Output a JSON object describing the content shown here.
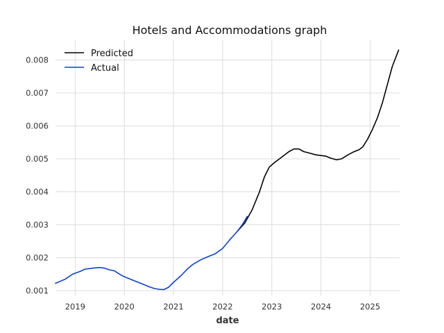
{
  "chart_data": {
    "type": "line",
    "title": "Hotels and Accommodations graph",
    "xlabel": "date",
    "ylabel": "",
    "xlim": [
      2018.6,
      2025.6
    ],
    "ylim": [
      0.00085,
      0.0086
    ],
    "x_ticks": [
      2019,
      2020,
      2021,
      2022,
      2023,
      2024,
      2025
    ],
    "x_tick_labels": [
      "2019",
      "2020",
      "2021",
      "2022",
      "2023",
      "2024",
      "2025"
    ],
    "y_ticks": [
      0.001,
      0.002,
      0.003,
      0.004,
      0.005,
      0.006,
      0.007,
      0.008
    ],
    "y_tick_labels": [
      "0.001",
      "0.002",
      "0.003",
      "0.004",
      "0.005",
      "0.006",
      "0.007",
      "0.008"
    ],
    "grid": true,
    "legend": {
      "position": "top-left"
    },
    "series": [
      {
        "name": "Predicted",
        "color": "#000000",
        "points": [
          [
            2022.3,
            0.0028
          ],
          [
            2022.45,
            0.00305
          ],
          [
            2022.6,
            0.00345
          ],
          [
            2022.75,
            0.004
          ],
          [
            2022.85,
            0.00445
          ],
          [
            2022.95,
            0.00475
          ],
          [
            2023.05,
            0.00488
          ],
          [
            2023.2,
            0.00505
          ],
          [
            2023.35,
            0.00522
          ],
          [
            2023.45,
            0.0053
          ],
          [
            2023.55,
            0.0053
          ],
          [
            2023.65,
            0.00522
          ],
          [
            2023.75,
            0.00518
          ],
          [
            2023.9,
            0.00512
          ],
          [
            2024.0,
            0.0051
          ],
          [
            2024.1,
            0.00508
          ],
          [
            2024.2,
            0.00502
          ],
          [
            2024.32,
            0.00497
          ],
          [
            2024.42,
            0.005
          ],
          [
            2024.55,
            0.00512
          ],
          [
            2024.65,
            0.0052
          ],
          [
            2024.78,
            0.00528
          ],
          [
            2024.85,
            0.00536
          ],
          [
            2024.95,
            0.0056
          ],
          [
            2025.05,
            0.0059
          ],
          [
            2025.15,
            0.00625
          ],
          [
            2025.25,
            0.0067
          ],
          [
            2025.35,
            0.00725
          ],
          [
            2025.45,
            0.0078
          ],
          [
            2025.58,
            0.0083
          ]
        ]
      },
      {
        "name": "Actual",
        "color": "#0a3fd9",
        "points": [
          [
            2018.6,
            0.00122
          ],
          [
            2018.8,
            0.00135
          ],
          [
            2018.95,
            0.0015
          ],
          [
            2019.1,
            0.00158
          ],
          [
            2019.2,
            0.00165
          ],
          [
            2019.35,
            0.00168
          ],
          [
            2019.5,
            0.0017
          ],
          [
            2019.6,
            0.00168
          ],
          [
            2019.7,
            0.00163
          ],
          [
            2019.8,
            0.0016
          ],
          [
            2019.9,
            0.0015
          ],
          [
            2020.0,
            0.00142
          ],
          [
            2020.2,
            0.0013
          ],
          [
            2020.4,
            0.00118
          ],
          [
            2020.5,
            0.00112
          ],
          [
            2020.6,
            0.00107
          ],
          [
            2020.7,
            0.00104
          ],
          [
            2020.8,
            0.00103
          ],
          [
            2020.9,
            0.0011
          ],
          [
            2021.0,
            0.00125
          ],
          [
            2021.15,
            0.00145
          ],
          [
            2021.3,
            0.00168
          ],
          [
            2021.4,
            0.0018
          ],
          [
            2021.55,
            0.00193
          ],
          [
            2021.7,
            0.00203
          ],
          [
            2021.85,
            0.00212
          ],
          [
            2022.0,
            0.00228
          ],
          [
            2022.15,
            0.00255
          ],
          [
            2022.3,
            0.0028
          ],
          [
            2022.4,
            0.003
          ],
          [
            2022.5,
            0.00325
          ]
        ]
      }
    ]
  }
}
